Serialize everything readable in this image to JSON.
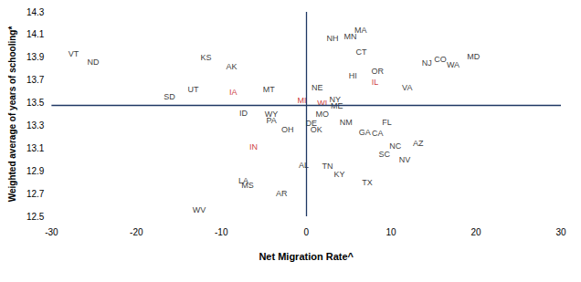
{
  "chart_data": {
    "type": "scatter",
    "x_label": "Net Migration Rate^",
    "y_label": "Weighted average of years of schooling*",
    "labels": [
      "VT",
      "ND",
      "KS",
      "AK",
      "SD",
      "UT",
      "IA",
      "MT",
      "ID",
      "WY",
      "PA",
      "OH",
      "IN",
      "AL",
      "LA",
      "MS",
      "AR",
      "WV",
      "NH",
      "MA",
      "MN",
      "CT",
      "HI",
      "OR",
      "IL",
      "NE",
      "MI",
      "WI",
      "NY",
      "ME",
      "MO",
      "DE",
      "OK",
      "NM",
      "FL",
      "GA",
      "CA",
      "NC",
      "SC",
      "AZ",
      "NV",
      "TN",
      "KY",
      "TX",
      "VA",
      "NJ",
      "CO",
      "WA",
      "MD"
    ],
    "x": [
      -27.4,
      -25.1,
      -11.8,
      -8.8,
      -16.1,
      -13.3,
      -8.6,
      -4.4,
      -7.4,
      -4.1,
      -4.1,
      -2.2,
      -6.2,
      -0.3,
      -7.4,
      -6.9,
      -2.9,
      -12.6,
      3.1,
      6.4,
      5.2,
      6.5,
      5.5,
      8.4,
      8.1,
      1.3,
      -0.5,
      1.9,
      3.4,
      3.6,
      1.9,
      0.6,
      1.2,
      4.7,
      9.5,
      6.9,
      8.4,
      10.5,
      9.2,
      13.2,
      11.6,
      2.5,
      3.9,
      7.2,
      11.9,
      14.2,
      15.8,
      17.3,
      19.7
    ],
    "y": [
      13.93,
      13.86,
      13.9,
      13.82,
      13.55,
      13.62,
      13.59,
      13.62,
      13.41,
      13.4,
      13.34,
      13.26,
      13.11,
      12.95,
      12.81,
      12.77,
      12.7,
      12.56,
      14.07,
      14.14,
      14.08,
      13.95,
      13.74,
      13.78,
      13.68,
      13.63,
      13.52,
      13.5,
      13.53,
      13.47,
      13.4,
      13.32,
      13.26,
      13.33,
      13.33,
      13.24,
      13.23,
      13.12,
      13.05,
      13.14,
      13.0,
      12.94,
      12.87,
      12.8,
      13.63,
      13.85,
      13.88,
      13.83,
      13.91
    ],
    "colors": [
      "#000000",
      "#000000",
      "#000000",
      "#000000",
      "#000000",
      "#000000",
      "#c00000",
      "#000000",
      "#000000",
      "#000000",
      "#000000",
      "#000000",
      "#c00000",
      "#000000",
      "#000000",
      "#000000",
      "#000000",
      "#000000",
      "#000000",
      "#000000",
      "#000000",
      "#000000",
      "#000000",
      "#000000",
      "#c00000",
      "#000000",
      "#c00000",
      "#c00000",
      "#000000",
      "#000000",
      "#000000",
      "#000000",
      "#000000",
      "#000000",
      "#000000",
      "#000000",
      "#000000",
      "#000000",
      "#000000",
      "#000000",
      "#000000",
      "#000000",
      "#000000",
      "#000000",
      "#000000",
      "#000000",
      "#000000",
      "#000000",
      "#000000"
    ],
    "vline": 0,
    "hline": 13.48,
    "xlim": [
      -30,
      30
    ],
    "xticks": [
      -30,
      -20,
      -10,
      0,
      10,
      20,
      30
    ],
    "ylim": [
      12.5,
      14.3
    ],
    "yticks": [
      12.5,
      12.7,
      12.9,
      13.1,
      13.3,
      13.5,
      13.7,
      13.9,
      14.1,
      14.3
    ],
    "grid": false
  }
}
